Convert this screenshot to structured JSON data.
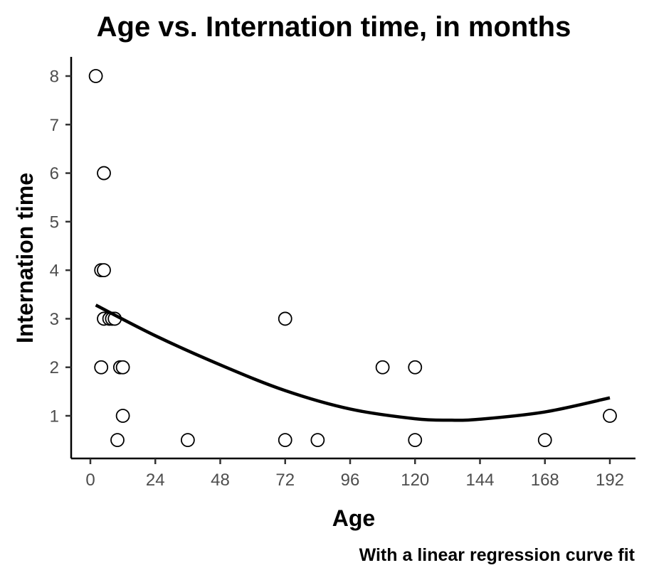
{
  "chart_data": {
    "type": "scatter",
    "title": "Age vs. Internation time, in months",
    "xlabel": "Age",
    "ylabel": "Internation time",
    "caption": "With a linear regression curve fit",
    "xlim": [
      -7,
      198
    ],
    "ylim": [
      0.1,
      8.4
    ],
    "x_ticks": [
      0,
      24,
      48,
      72,
      96,
      120,
      144,
      168,
      192
    ],
    "y_ticks": [
      1,
      2,
      3,
      4,
      5,
      6,
      7,
      8
    ],
    "grid": false,
    "legend": "none",
    "points": [
      {
        "x": 2,
        "y": 8
      },
      {
        "x": 5,
        "y": 6
      },
      {
        "x": 4,
        "y": 4
      },
      {
        "x": 5,
        "y": 4
      },
      {
        "x": 5,
        "y": 3
      },
      {
        "x": 7,
        "y": 3
      },
      {
        "x": 8,
        "y": 3
      },
      {
        "x": 9,
        "y": 3
      },
      {
        "x": 4,
        "y": 2
      },
      {
        "x": 11,
        "y": 2
      },
      {
        "x": 12,
        "y": 2
      },
      {
        "x": 12,
        "y": 1
      },
      {
        "x": 10,
        "y": 0.5
      },
      {
        "x": 36,
        "y": 0.5
      },
      {
        "x": 72,
        "y": 3
      },
      {
        "x": 72,
        "y": 0.5
      },
      {
        "x": 84,
        "y": 0.5
      },
      {
        "x": 108,
        "y": 2
      },
      {
        "x": 120,
        "y": 2
      },
      {
        "x": 120,
        "y": 0.5
      },
      {
        "x": 168,
        "y": 0.5
      },
      {
        "x": 192,
        "y": 1
      }
    ],
    "fit_curve": {
      "type": "quadratic",
      "x": [
        2,
        24,
        48,
        72,
        96,
        120,
        133,
        144,
        168,
        192
      ],
      "y": [
        3.28,
        2.65,
        2.05,
        1.52,
        1.14,
        0.94,
        0.91,
        0.93,
        1.08,
        1.37
      ]
    }
  }
}
